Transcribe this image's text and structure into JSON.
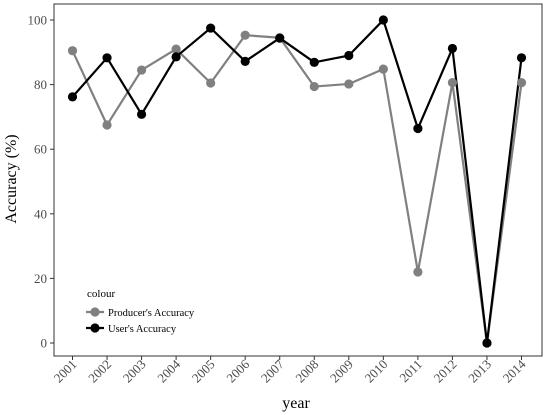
{
  "chart_data": {
    "type": "line",
    "x": [
      "2001",
      "2002",
      "2003",
      "2004",
      "2005",
      "2006",
      "2007",
      "2008",
      "2009",
      "2010",
      "2011",
      "2012",
      "2013",
      "2014"
    ],
    "series": [
      {
        "name": "Producer's Accuracy",
        "color": "#808080",
        "values": [
          90.5,
          67.5,
          84.5,
          91.0,
          80.5,
          95.3,
          94.5,
          79.4,
          80.2,
          84.8,
          22.0,
          80.6,
          0.0,
          80.6
        ]
      },
      {
        "name": "User's Accuracy",
        "color": "#000000",
        "values": [
          76.2,
          88.3,
          70.8,
          88.6,
          97.5,
          87.2,
          94.4,
          86.9,
          89.0,
          100.0,
          66.4,
          91.2,
          0.0,
          88.3
        ]
      }
    ],
    "xlabel": "year",
    "ylabel": "Accuracy (%)",
    "ylim": [
      0,
      100
    ],
    "yticks": [
      0,
      20,
      40,
      60,
      80,
      100
    ],
    "legend": {
      "title": "colour",
      "placement": "bottom-left"
    },
    "grid": false
  }
}
